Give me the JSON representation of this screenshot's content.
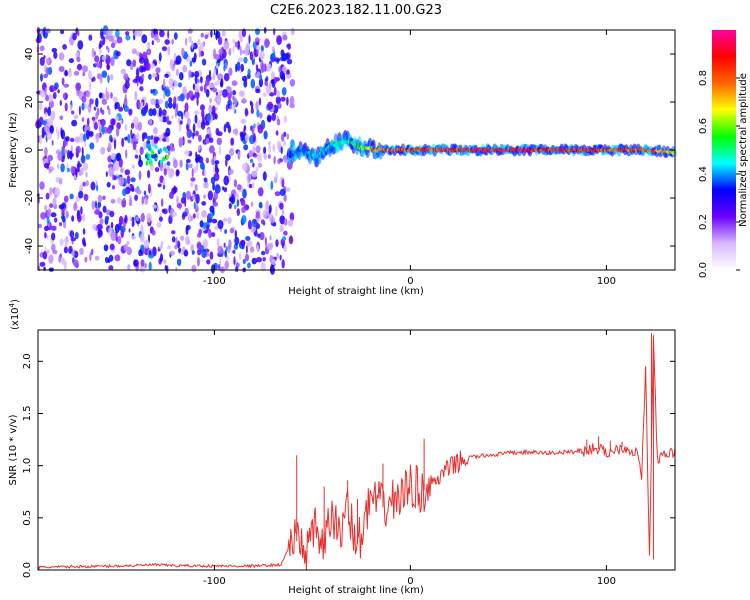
{
  "figure": {
    "title": "C2E6.2023.182.11.00.G23"
  },
  "chart_data": [
    {
      "type": "heatmap",
      "xlabel": "Height of straight line (km)",
      "ylabel": "Frequency (Hz)",
      "xlim": [
        -190,
        135
      ],
      "ylim": [
        -50,
        50
      ],
      "xticks": [
        -100,
        0,
        100
      ],
      "xtick_labels": [
        "-100",
        "0",
        "100"
      ],
      "yticks": [
        40,
        20,
        0,
        -20,
        -40
      ],
      "ytick_labels": [
        "40",
        "20",
        "0",
        "-20",
        "-40"
      ],
      "colorbar": {
        "label": "Normalized spectral amplitude",
        "range": [
          0,
          1
        ],
        "ticks": [
          0.0,
          0.2,
          0.4,
          0.6,
          0.8
        ],
        "tick_labels": [
          "0.0",
          "0.2",
          "0.4",
          "0.6",
          "0.8"
        ],
        "colormap": [
          "#ffffff",
          "#d8b8ff",
          "#6a00ff",
          "#0000ff",
          "#00ffff",
          "#00ff00",
          "#ffff00",
          "#ff6600",
          "#ff0000",
          "#ff00a0"
        ]
      },
      "noise_region": {
        "x": [
          -190,
          -60
        ],
        "amplitude": [
          0.1,
          0.4
        ]
      },
      "signal_ridge": [
        {
          "x": -62,
          "f": -2,
          "amp": 0.35
        },
        {
          "x": -55,
          "f": 0,
          "amp": 0.4
        },
        {
          "x": -48,
          "f": -3,
          "amp": 0.45
        },
        {
          "x": -40,
          "f": 2,
          "amp": 0.5
        },
        {
          "x": -33,
          "f": 4,
          "amp": 0.5
        },
        {
          "x": -25,
          "f": 1,
          "amp": 0.6
        },
        {
          "x": -15,
          "f": 0,
          "amp": 0.8
        },
        {
          "x": 0,
          "f": 0,
          "amp": 0.85
        },
        {
          "x": 20,
          "f": 0,
          "amp": 0.9
        },
        {
          "x": 50,
          "f": 0,
          "amp": 0.95
        },
        {
          "x": 80,
          "f": 0,
          "amp": 0.9
        },
        {
          "x": 100,
          "f": 0,
          "amp": 0.85
        },
        {
          "x": 120,
          "f": 0,
          "amp": 0.85
        },
        {
          "x": 135,
          "f": -1,
          "amp": 0.7
        }
      ]
    },
    {
      "type": "line",
      "xlabel": "Height of straight line (km)",
      "ylabel": "SNR (10 * v/v)",
      "scale_label": "(x10",
      "scale_exponent": "4",
      "xlim": [
        -190,
        135
      ],
      "ylim": [
        0,
        23000
      ],
      "xticks": [
        -100,
        0,
        100
      ],
      "xtick_labels": [
        "-100",
        "0",
        "100"
      ],
      "yticks": [
        0,
        5000,
        10000,
        15000,
        20000
      ],
      "ytick_labels": [
        "0.0",
        "0.5",
        "1.0",
        "1.5",
        "2.0"
      ],
      "color": "#e8302e",
      "series": [
        {
          "x": [
            -190,
            -170,
            -150,
            -130,
            -120,
            -100,
            -80,
            -66,
            -60,
            -52,
            -48,
            -44,
            -40,
            -36,
            -32,
            -28,
            -24,
            -20,
            -14,
            -10,
            -6,
            -2,
            0,
            6,
            10,
            16,
            20,
            26,
            30,
            40,
            50,
            60,
            70,
            80,
            90,
            94,
            100,
            108,
            112,
            116,
            118,
            120,
            122,
            124,
            126,
            130,
            135
          ],
          "y": [
            250,
            320,
            380,
            500,
            420,
            380,
            380,
            500,
            3000,
            2000,
            4000,
            2000,
            5500,
            3000,
            7000,
            2000,
            4000,
            7000,
            6000,
            6500,
            7000,
            7500,
            8200,
            7500,
            8000,
            9000,
            9800,
            10500,
            10800,
            11000,
            11200,
            11300,
            11200,
            11300,
            11400,
            11800,
            11200,
            11800,
            11500,
            11200,
            9000,
            19000,
            1000,
            22500,
            10500,
            11000,
            11400
          ]
        }
      ],
      "spikes": [
        {
          "x": -58,
          "y": 11000
        },
        {
          "x": -44,
          "y": 8000
        },
        {
          "x": -32,
          "y": 8600
        },
        {
          "x": -27,
          "y": 6800
        },
        {
          "x": -14,
          "y": 10200
        },
        {
          "x": 7,
          "y": 12600
        },
        {
          "x": 90,
          "y": 12500
        },
        {
          "x": 96,
          "y": 12800
        },
        {
          "x": 102,
          "y": 12400
        },
        {
          "x": 108,
          "y": 12300
        },
        {
          "x": 120,
          "y": 19200
        },
        {
          "x": 123,
          "y": 22700
        },
        {
          "x": 124,
          "y": 1000
        }
      ]
    }
  ]
}
